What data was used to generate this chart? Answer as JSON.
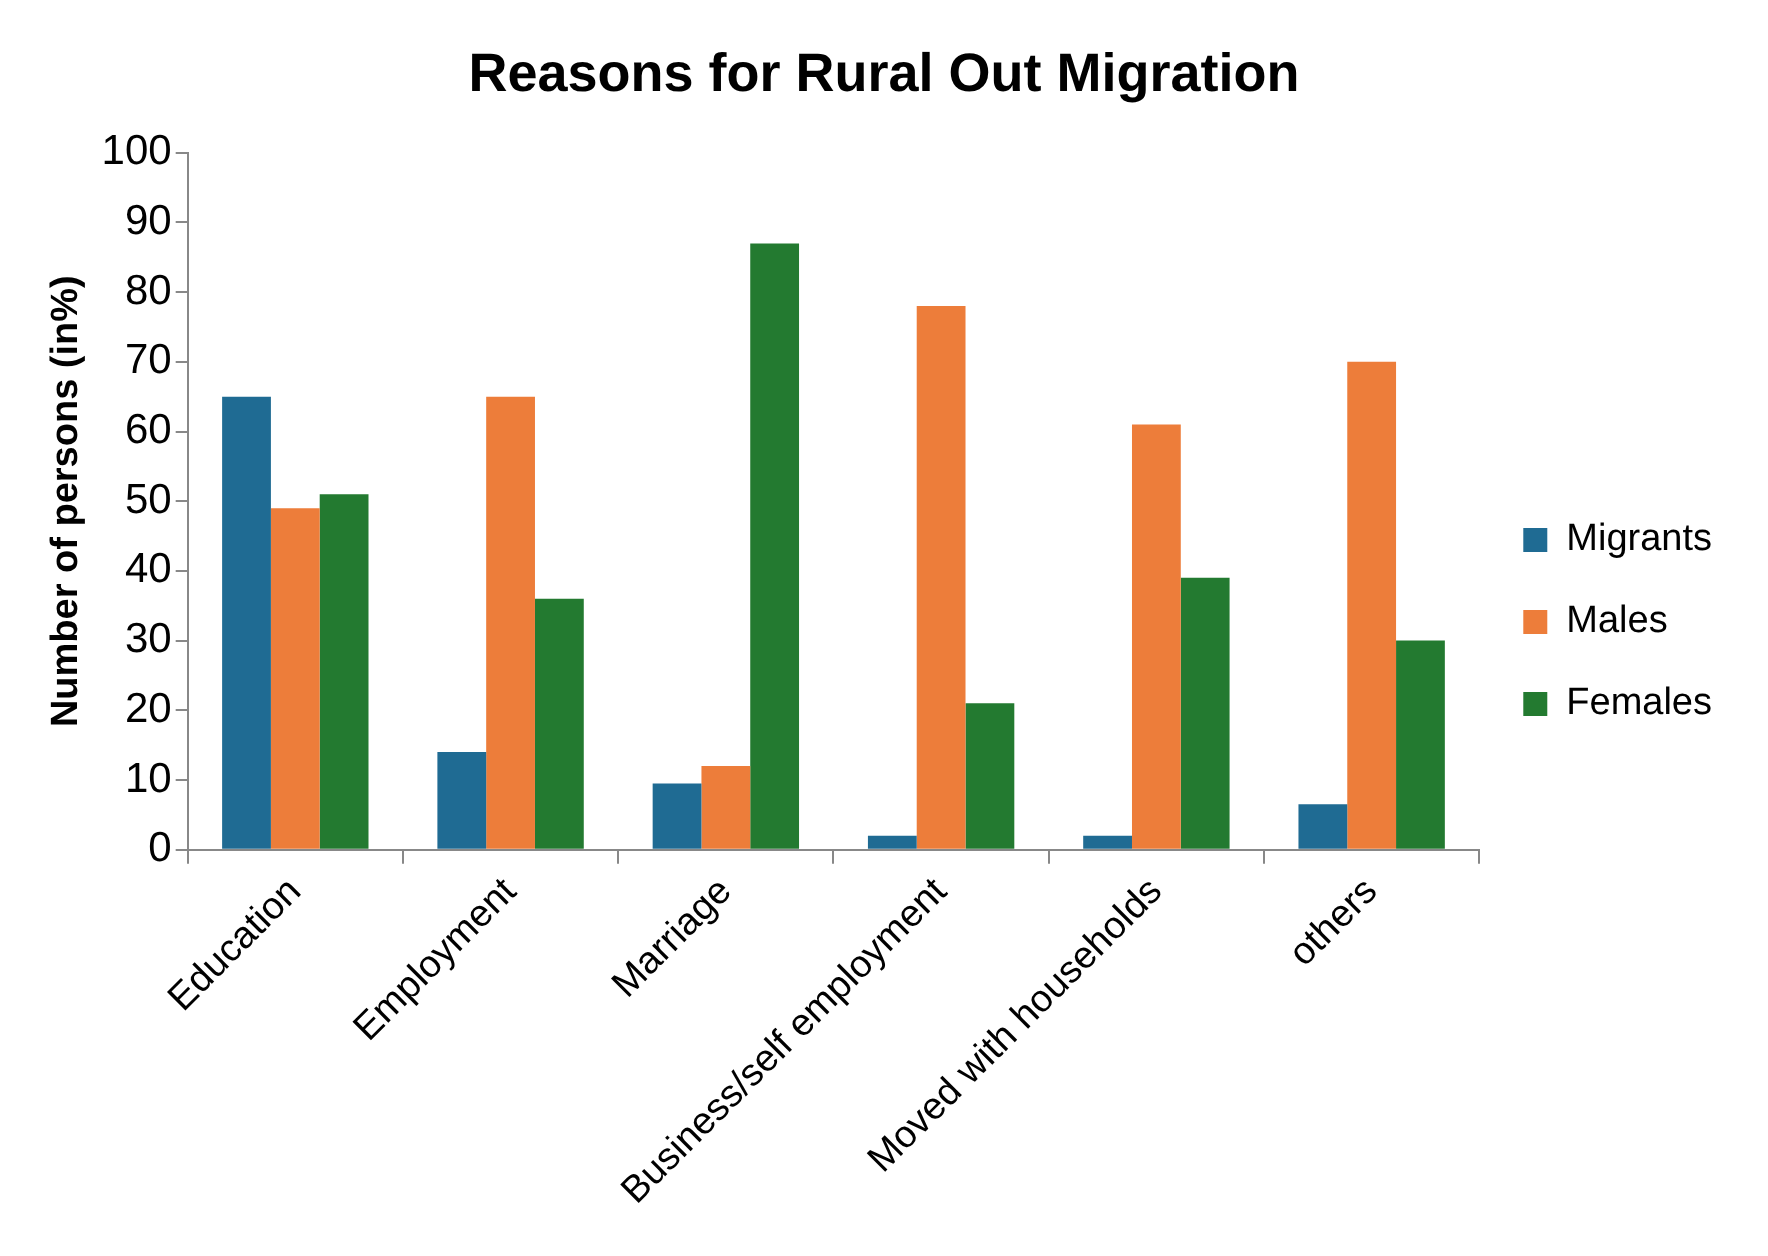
{
  "chart_data": {
    "type": "bar",
    "title": "Reasons for Rural Out Migration",
    "ylabel": "Number of persons (in%)",
    "categories": [
      "Education",
      "Employment",
      "Marriage",
      "Business/self employment",
      "Moved with households",
      "others"
    ],
    "series": [
      {
        "name": "Migrants",
        "color": "#1f6b93",
        "values": [
          65,
          14,
          9.5,
          2,
          2,
          6.5
        ]
      },
      {
        "name": "Males",
        "color": "#ed7d3a",
        "values": [
          49,
          65,
          12,
          78,
          61,
          70
        ]
      },
      {
        "name": "Females",
        "color": "#237a30",
        "values": [
          51,
          36,
          87,
          21,
          39,
          30
        ]
      }
    ],
    "ylim": [
      0,
      100
    ],
    "yticks": [
      0,
      10,
      20,
      30,
      40,
      50,
      60,
      70,
      80,
      90,
      100
    ],
    "grid": false,
    "legend": "right"
  }
}
